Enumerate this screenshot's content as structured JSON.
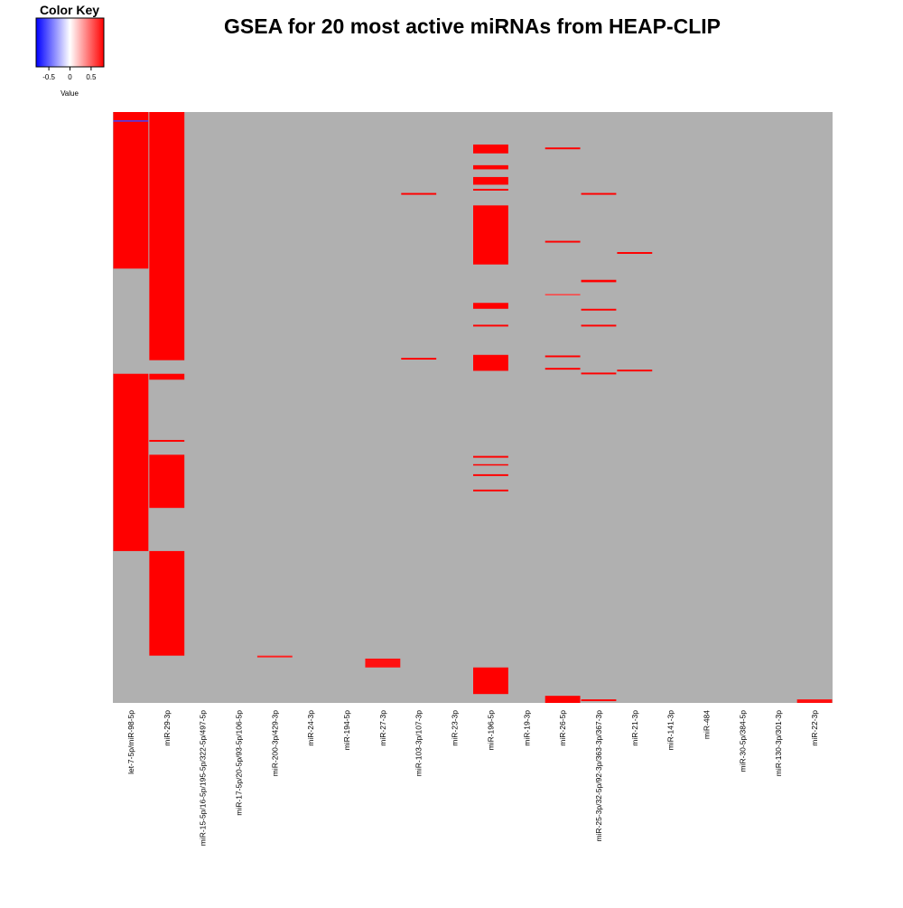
{
  "chart_data": {
    "type": "heatmap",
    "title": "GSEA for 20 most active miRNAs from HEAP-CLIP",
    "colorscale": {
      "low": "#0000ff",
      "mid": "#ffffff",
      "high": "#ff0000",
      "na": "#b0b0b0"
    },
    "color_key": {
      "title": "Color Key",
      "label": "Value",
      "ticks": [
        "-0.5",
        "0",
        "0.5"
      ],
      "tick_values": [
        -0.5,
        0,
        0.5
      ],
      "range": [
        -0.8,
        0.8
      ]
    },
    "columns": [
      "let-7-5p/miR-98-5p",
      "miR-29-3p",
      "miR-15-5p/16-5p/195-5p/322-5p/497-5p",
      "miR-17-5p/20-5p/93-5p/106-5p",
      "miR-200-3p/429-3p",
      "miR-24-3p",
      "miR-194-5p",
      "miR-27-3p",
      "miR-103-3p/107-3p",
      "miR-23-3p",
      "miR-196-5p",
      "miR-19-3p",
      "miR-26-5p",
      "miR-25-3p/32-5p/92-3p/363-3p/367-3p",
      "miR-21-3p",
      "miR-141-3p",
      "miR-484",
      "miR-30-5p/384-5p",
      "miR-130-3p/301-3p",
      "miR-22-3p"
    ],
    "n_rows": 1000,
    "blocks": [
      {
        "col": 0,
        "rows": [
          0,
          265
        ],
        "value": 0.8
      },
      {
        "col": 0,
        "rows": [
          443,
          743
        ],
        "value": 0.8
      },
      {
        "col": 0,
        "rows": [
          14,
          16
        ],
        "value": -0.6
      },
      {
        "col": 1,
        "rows": [
          0,
          420
        ],
        "value": 0.8
      },
      {
        "col": 1,
        "rows": [
          443,
          453
        ],
        "value": 0.8
      },
      {
        "col": 1,
        "rows": [
          555,
          558
        ],
        "value": 0.8
      },
      {
        "col": 1,
        "rows": [
          580,
          670
        ],
        "value": 0.8
      },
      {
        "col": 1,
        "rows": [
          743,
          920
        ],
        "value": 0.8
      },
      {
        "col": 4,
        "rows": [
          920,
          923
        ],
        "value": 0.7
      },
      {
        "col": 7,
        "rows": [
          925,
          940
        ],
        "value": 0.75
      },
      {
        "col": 8,
        "rows": [
          137,
          140
        ],
        "value": 0.85
      },
      {
        "col": 8,
        "rows": [
          416,
          419
        ],
        "value": 0.85
      },
      {
        "col": 10,
        "rows": [
          55,
          70
        ],
        "value": 0.8
      },
      {
        "col": 10,
        "rows": [
          90,
          97
        ],
        "value": 0.8
      },
      {
        "col": 10,
        "rows": [
          110,
          123
        ],
        "value": 0.8
      },
      {
        "col": 10,
        "rows": [
          130,
          133
        ],
        "value": 0.8
      },
      {
        "col": 10,
        "rows": [
          158,
          258
        ],
        "value": 0.8
      },
      {
        "col": 10,
        "rows": [
          323,
          333
        ],
        "value": 0.8
      },
      {
        "col": 10,
        "rows": [
          360,
          363
        ],
        "value": 0.8
      },
      {
        "col": 10,
        "rows": [
          411,
          438
        ],
        "value": 0.8
      },
      {
        "col": 10,
        "rows": [
          582,
          585
        ],
        "value": 0.8
      },
      {
        "col": 10,
        "rows": [
          596,
          598
        ],
        "value": 0.8
      },
      {
        "col": 10,
        "rows": [
          613,
          616
        ],
        "value": 0.8
      },
      {
        "col": 10,
        "rows": [
          639,
          642
        ],
        "value": 0.8
      },
      {
        "col": 10,
        "rows": [
          940,
          985
        ],
        "value": 0.8
      },
      {
        "col": 12,
        "rows": [
          60,
          63
        ],
        "value": 0.85
      },
      {
        "col": 12,
        "rows": [
          218,
          221
        ],
        "value": 0.85
      },
      {
        "col": 12,
        "rows": [
          308,
          310
        ],
        "value": 0.6
      },
      {
        "col": 12,
        "rows": [
          412,
          415
        ],
        "value": 0.85
      },
      {
        "col": 12,
        "rows": [
          433,
          436
        ],
        "value": 0.85
      },
      {
        "col": 12,
        "rows": [
          988,
          1000
        ],
        "value": 0.85
      },
      {
        "col": 13,
        "rows": [
          137,
          140
        ],
        "value": 0.85
      },
      {
        "col": 13,
        "rows": [
          284,
          288
        ],
        "value": 0.85
      },
      {
        "col": 13,
        "rows": [
          333,
          336
        ],
        "value": 0.85
      },
      {
        "col": 13,
        "rows": [
          360,
          363
        ],
        "value": 0.85
      },
      {
        "col": 13,
        "rows": [
          441,
          444
        ],
        "value": 0.85
      },
      {
        "col": 13,
        "rows": [
          994,
          997
        ],
        "value": 0.85
      },
      {
        "col": 14,
        "rows": [
          237,
          240
        ],
        "value": 0.85
      },
      {
        "col": 14,
        "rows": [
          436,
          439
        ],
        "value": 0.85
      },
      {
        "col": 19,
        "rows": [
          994,
          1000
        ],
        "value": 0.75
      }
    ]
  }
}
